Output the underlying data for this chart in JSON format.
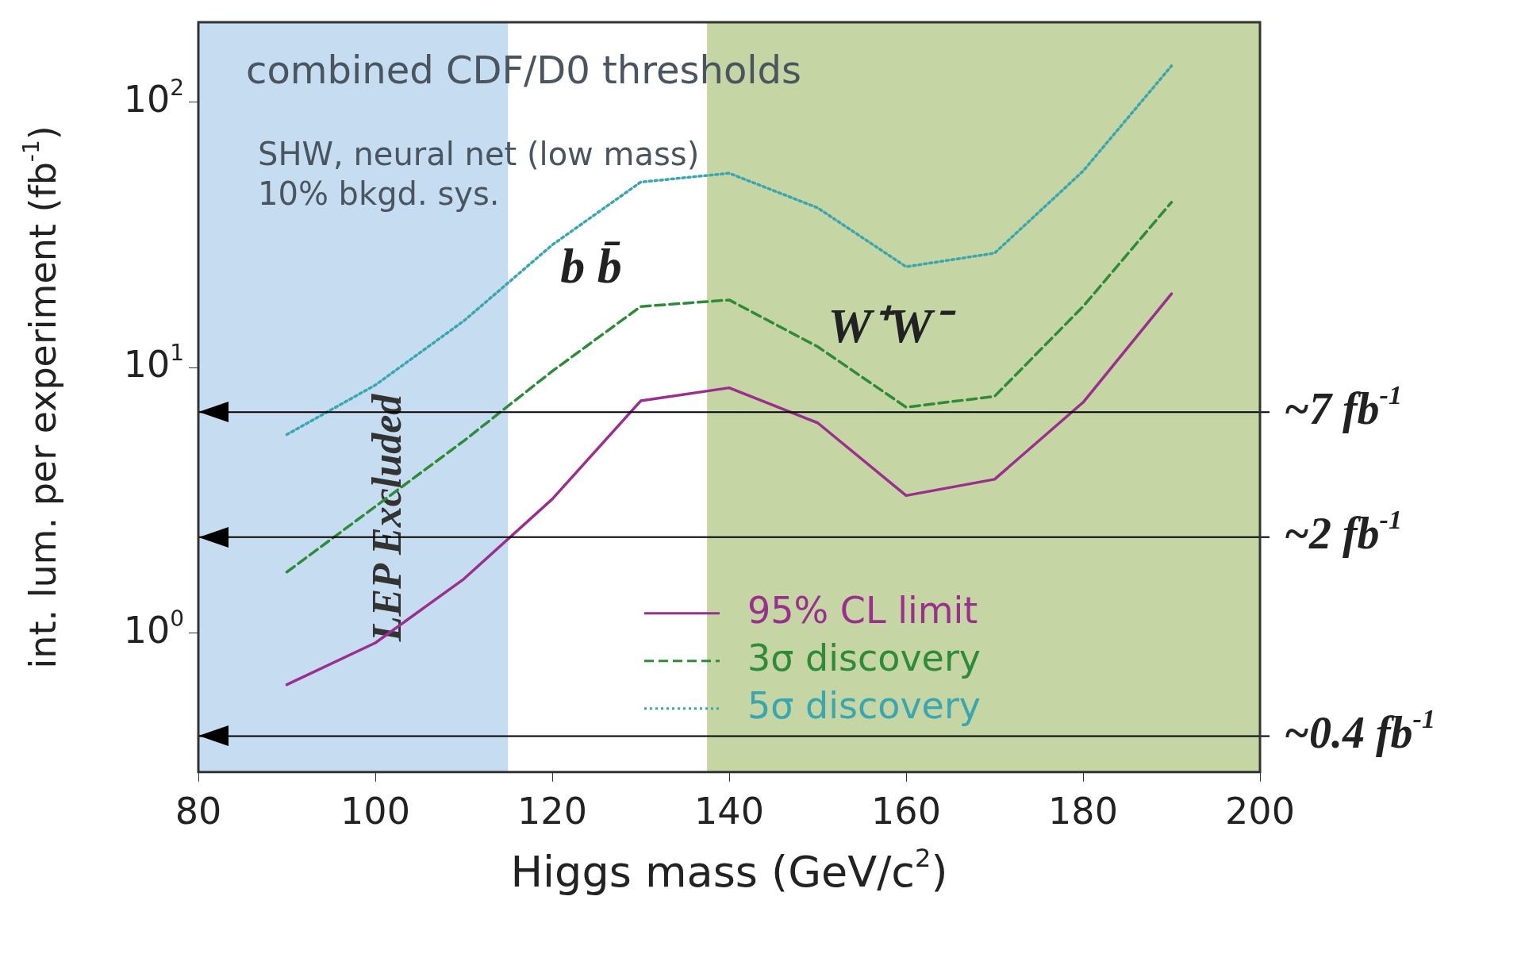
{
  "chart_data": {
    "type": "line",
    "title": "combined CDF/D0 thresholds",
    "xlabel": "Higgs mass (GeV/c$^{2}$)",
    "ylabel": "int. lum. per experiment (fb$^{-1}$)",
    "x": [
      90,
      100,
      110,
      120,
      130,
      140,
      150,
      160,
      170,
      180,
      190
    ],
    "series": [
      {
        "name": "95% CL limit",
        "color": "#9b2f8f",
        "line_style": "solid",
        "values": [
          0.64,
          0.92,
          1.6,
          3.2,
          7.5,
          8.4,
          6.2,
          3.3,
          3.8,
          7.4,
          19
        ]
      },
      {
        "name": "3σ discovery",
        "color": "#2e8b3a",
        "line_style": "dashed",
        "values": [
          1.7,
          3.0,
          5.3,
          9.7,
          17,
          18,
          12,
          7.1,
          7.8,
          17,
          42
        ]
      },
      {
        "name": "5σ discovery",
        "color": "#3aa6b0",
        "line_style": "dotted",
        "values": [
          5.6,
          8.6,
          15,
          29,
          50,
          54,
          40,
          24,
          27,
          55,
          137
        ]
      }
    ],
    "xlim": [
      80,
      200
    ],
    "xticks": [
      80,
      100,
      120,
      140,
      160,
      180,
      200
    ],
    "ylim": [
      0.3,
      200
    ],
    "yticks": [
      {
        "value": 1,
        "label": "10$^{0}$"
      },
      {
        "value": 10,
        "label": "10$^{1}$"
      },
      {
        "value": 100,
        "label": "10$^{2}$"
      }
    ],
    "log": "y",
    "grid": false,
    "legend": "bottom right",
    "marker": "none",
    "bands": [
      {
        "axis": "x",
        "from": 80,
        "to": 115,
        "label": "LEP Excluded",
        "color": "#c6dcf0"
      },
      {
        "axis": "x",
        "from": 137.5,
        "to": 200,
        "color": "#c5d5a3"
      }
    ],
    "ref_lines": [
      {
        "axis": "y",
        "value": 6.8,
        "label": "~7 fb$^{-1}$",
        "color": "#000000"
      },
      {
        "axis": "y",
        "value": 2.3,
        "label": "~2 fb$^{-1}$",
        "color": "#000000"
      },
      {
        "axis": "y",
        "value": 0.41,
        "label": "~0.4 fb$^{-1}$",
        "color": "#000000"
      }
    ],
    "annotations": [
      "SHW, neural net (low mass)",
      "10% bkgd. sys.",
      "b b̄",
      "W⁺W⁻"
    ]
  }
}
